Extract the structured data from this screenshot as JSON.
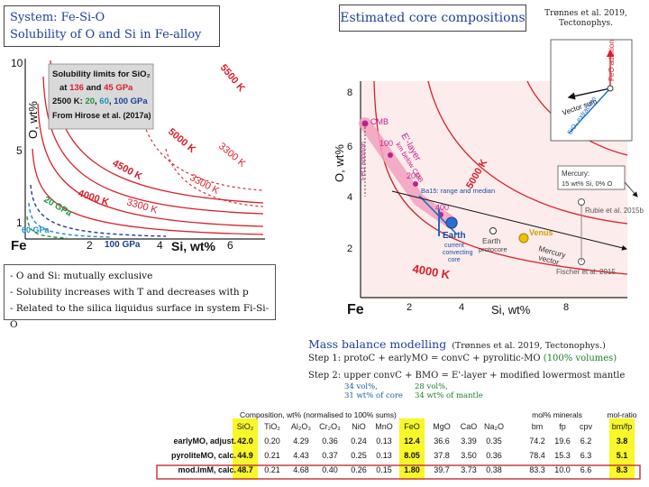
{
  "title_box": {
    "line1": "System: Fe-Si-O",
    "line2": "Solubility of O and Si in Fe-alloy"
  },
  "estimated_box": "Estimated core compositions",
  "ref_top": {
    "line1": "Trønnes et al. 2019,",
    "line2": "Tectonophys."
  },
  "left_plot": {
    "ylabel": "O, wt%",
    "xlabel": "Si, wt%",
    "corner": "Fe",
    "y_ticks": [
      "10",
      "5",
      "1"
    ],
    "x_ticks": [
      "2",
      "4",
      "6"
    ],
    "legend": {
      "l1": "Solubility limits for SiO₂",
      "l2a": "at ",
      "l2b": "136",
      "l2c": " and ",
      "l2d": "45 GPa",
      "l3a": "2500 K: ",
      "l3b": "20",
      "l3c": ", ",
      "l3d": "60",
      "l3e": ", ",
      "l3f": "100 GPa",
      "l4": "From Hirose et al. (2017a)"
    },
    "curve_labels": {
      "k5500": "5500 K",
      "k5000": "5000 K",
      "k4500": "4500 K",
      "k4000": "4000 K",
      "k3300a": "3300 K",
      "k3300b": "3300 K",
      "k3300c": "3300 K",
      "gpa20": "20 GPa",
      "gpa60": "60 GPa",
      "gpa100": "100 GPa"
    },
    "colors": {
      "red": "#d8202a",
      "blue": "#1f3f99",
      "green": "#1a9a3a",
      "cyan": "#1b8fc0",
      "legend_bg": "#d9d9d9"
    }
  },
  "notes": [
    "- O and Si: mutually exclusive",
    "- Solubility increases with T and decreases with p",
    "- Related to the silica liquidus surface in system Fi-Si-O"
  ],
  "right_plot": {
    "ylabel": "O, wt%",
    "xlabel": "Si, wt%",
    "corner": "Fe",
    "y_ticks": [
      "8",
      "6",
      "4",
      "2"
    ],
    "x_ticks": [
      "2",
      "4",
      "8"
    ],
    "labels": {
      "cmb": "CMB",
      "elayer": "E'-layer",
      "km_below": "km below CMB",
      "k100": "100",
      "k200": "200",
      "k400": "400",
      "feo_addition": "FeO addition",
      "ba15": "Ba15: range and median",
      "earth": "Earth",
      "earth_sub1": "current",
      "earth_sub2": "convecting",
      "earth_sub3": "core",
      "earth_proto": "Earth",
      "earth_proto_sub": "protocore",
      "venus": "Venus",
      "mercury": "Mercury",
      "mercury_vector": "vector",
      "k5000": "5000 K",
      "k4000": "4000 K",
      "fischer": "Fischer et al. 2015",
      "rubie": "Rubie et al. 2015b"
    },
    "vector_box": {
      "feo": "FeO addition",
      "vector": "Vector sum",
      "sio2": "SiO₂ extraction"
    },
    "mercury_box": {
      "line1": "Mercury:",
      "line2": "15 wt% Si, 0% O"
    }
  },
  "mass_balance": {
    "title": "Mass balance modelling",
    "ref": "(Trønnes et al. 2019, Tectonophys.)",
    "step1_a": "Step 1:  proto",
    "step1_b": "C + early",
    "step1_c": "MO = conv",
    "step1_d": "C + pyrolitic-",
    "step1_e": "MO  ",
    "step1_f": "(100% volumes)",
    "step2_a": "Step 2:  upper conv",
    "step2_b": "C  +  BMO  =  E'-layer   +  modified lowermost mantle",
    "annot1": "34 vol%,\n31 wt% of core",
    "annot2": "28 vol%,\n34 wt% of mantle"
  },
  "table": {
    "header_left": "Composition, wt% (normalised to 100% sums)",
    "header_mid": "mol% minerals",
    "header_right": "mol-ratio",
    "columns": [
      "SiO₂",
      "TiO₂",
      "Al₂O₃",
      "Cr₂O₃",
      "NiO",
      "MnO",
      "FeO",
      "MgO",
      "CaO",
      "Na₂O",
      "bm",
      "fp",
      "cpv",
      "bm/fp"
    ],
    "rows": [
      {
        "label": "earlyMO, adjust.",
        "values": [
          "42.0",
          "0.20",
          "4.29",
          "0.36",
          "0.24",
          "0.13",
          "12.4",
          "36.6",
          "3.39",
          "0.35",
          "74.2",
          "19.6",
          "6.2",
          "3.8"
        ]
      },
      {
        "label": "pyroliteMO, calc.",
        "values": [
          "44.9",
          "0.21",
          "4.43",
          "0.37",
          "0.25",
          "0.13",
          "8.05",
          "37.8",
          "3.50",
          "0.36",
          "78.4",
          "15.3",
          "6.3",
          "5.1"
        ]
      },
      {
        "label": "mod.lmM, calc.",
        "values": [
          "48.7",
          "0.21",
          "4.68",
          "0.40",
          "0.26",
          "0.15",
          "1.80",
          "39.7",
          "3.73",
          "0.38",
          "83.3",
          "10.0",
          "6.6",
          "8.3"
        ]
      }
    ],
    "highlight_color": "#f7f72a",
    "row3_border_color": "#c0303a"
  }
}
